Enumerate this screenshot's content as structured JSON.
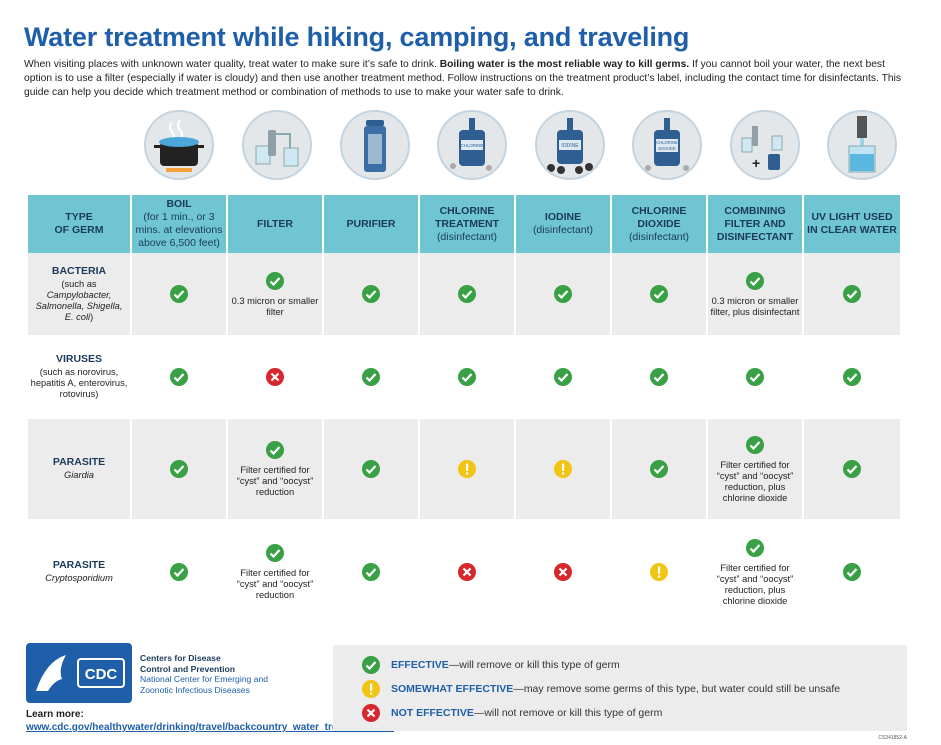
{
  "title": "Water treatment while hiking, camping, and traveling",
  "intro": {
    "part1": "When visiting places with unknown water quality, treat water to make sure it’s safe to drink. ",
    "bold": "Boiling water is the most reliable way to kill germs.",
    "part2": " If you cannot boil your water, the next best option is to use a filter (especially if water is cloudy) and then use another treatment method. Follow instructions on the treatment product’s label, including the contact time for disinfectants. This guide can help you decide which treatment method or combination of methods to use to make your water safe to drink."
  },
  "icons": [
    "boiling-pot-icon",
    "filter-icon",
    "purifier-bottle-icon",
    "chlorine-bottle-icon",
    "iodine-bottle-icon",
    "chlorine-dioxide-bottle-icon",
    "filter-plus-disinfectant-icon",
    "uv-light-icon"
  ],
  "icon_labels": {
    "chlorine": "CHLORINE",
    "iodine": "IODINE",
    "chlorine_dioxide_1": "CHLORINE",
    "chlorine_dioxide_2": "DIOXIDE"
  },
  "header": {
    "germ": [
      "TYPE",
      "OF GERM"
    ],
    "boil": {
      "title": "BOIL",
      "sub": "(for 1 min., or 3 mins. at elevations above 6,500 feet)"
    },
    "filter": {
      "title": "FILTER"
    },
    "purifier": {
      "title": "PURIFIER"
    },
    "chlorine": {
      "title": "CHLORINE TREATMENT",
      "sub": "(disinfectant)"
    },
    "iodine": {
      "title": "IODINE",
      "sub": "(disinfectant)"
    },
    "chlorine_dioxide": {
      "title": "CHLORINE DIOXIDE",
      "sub": "(disinfectant)"
    },
    "combining": {
      "title": "COMBINING FILTER AND DISINFECTANT"
    },
    "uv": {
      "title": "UV LIGHT USED IN CLEAR WATER"
    }
  },
  "rows": [
    {
      "germ": "BACTERIA",
      "detail_pre": "(such as ",
      "detail_italic": "Campylobacter, Salmonella, Shigella, E. coli",
      "detail_post": ")",
      "marks": [
        "effective",
        "effective",
        "effective",
        "effective",
        "effective",
        "effective",
        "effective",
        "effective"
      ],
      "notes": [
        "",
        "0.3 micron or smaller filter",
        "",
        "",
        "",
        "",
        "0.3 micron or smaller filter, plus disinfectant",
        ""
      ]
    },
    {
      "germ": "VIRUSES",
      "detail_pre": "(such as norovirus, hepatitis A, enterovirus, rotovirus",
      "detail_italic": "",
      "detail_post": ")",
      "marks": [
        "effective",
        "not_effective",
        "effective",
        "effective",
        "effective",
        "effective",
        "effective",
        "effective"
      ],
      "notes": [
        "",
        "",
        "",
        "",
        "",
        "",
        "",
        ""
      ]
    },
    {
      "germ": "PARASITE",
      "detail_pre": "",
      "detail_italic": "Giardia",
      "detail_post": "",
      "marks": [
        "effective",
        "effective",
        "effective",
        "somewhat",
        "somewhat",
        "effective",
        "effective",
        "effective"
      ],
      "notes": [
        "",
        "Filter certified for “cyst” and “oocyst” reduction",
        "",
        "",
        "",
        "",
        "Filter certified for “cyst” and “oocyst” reduction, plus chlorine dioxide",
        ""
      ]
    },
    {
      "germ": "PARASITE",
      "detail_pre": "",
      "detail_italic": "Cryptosporidium",
      "detail_post": "",
      "marks": [
        "effective",
        "effective",
        "effective",
        "not_effective",
        "not_effective",
        "somewhat",
        "effective",
        "effective"
      ],
      "notes": [
        "",
        "Filter certified for “cyst” and “oocyst” reduction",
        "",
        "",
        "",
        "",
        "Filter certified for “cyst” and “oocyst” reduction, plus chlorine dioxide",
        ""
      ]
    }
  ],
  "footer": {
    "logo_text": "CDC",
    "org_line1": "Centers for Disease",
    "org_line2": "Control and Prevention",
    "org_line3": "National Center for Emerging and",
    "org_line4": "Zoonotic Infectious Diseases",
    "learn_label": "Learn more: ",
    "learn_link": "www.cdc.gov/healthywater/drinking/travel/backcountry_water_treatment.html"
  },
  "legend": [
    {
      "type": "effective",
      "label": "EFFECTIVE",
      "text": "—will remove or kill this type of germ"
    },
    {
      "type": "somewhat",
      "label": "SOMEWHAT EFFECTIVE",
      "text": "—may remove some germs of this type, but water could still be unsafe"
    },
    {
      "type": "not_effective",
      "label": "NOT EFFECTIVE",
      "text": "—will not remove or kill this type of germ"
    }
  ],
  "doc_code": "CS341852-A",
  "colors": {
    "effective": "#3aa046",
    "somewhat": "#f2c414",
    "not_effective": "#d7262e",
    "header": "#6fc5d2",
    "title": "#1f5fa9"
  }
}
